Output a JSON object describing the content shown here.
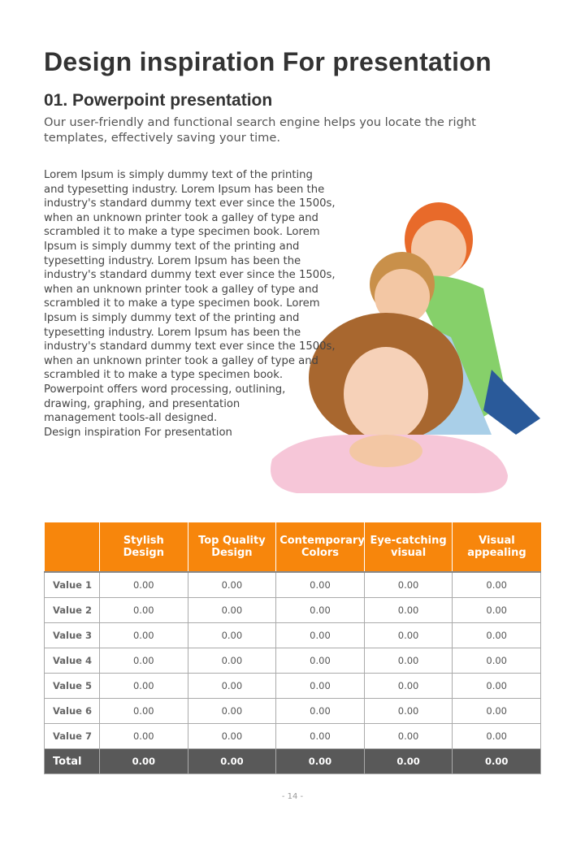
{
  "header": {
    "title": "Design inspiration For presentation",
    "subtitle": "01. Powerpoint presentation",
    "lead": [
      "Our user-friendly and functional search engine helps you locate the right",
      "templates, effectively saving your time."
    ]
  },
  "body": {
    "lines": [
      "Lorem Ipsum is simply dummy text of the printing",
      "and typesetting industry. Lorem Ipsum has been the",
      "industry's standard dummy text ever since the 1500s,",
      "when an unknown printer took a galley of type and",
      "scrambled it to make a type specimen book. Lorem",
      "Ipsum is simply dummy text of the printing and",
      "typesetting industry.  Lorem Ipsum has been the",
      "industry's standard dummy text ever since the 1500s,",
      "when an unknown printer took a galley of type and",
      "scrambled it to make a type specimen book. Lorem",
      "Ipsum is simply dummy text of the printing and",
      "typesetting industry. Lorem Ipsum has been the",
      "industry's standard dummy text ever since the 1500s,",
      "when an unknown printer took a galley of type and",
      "scrambled it to make a type specimen book.",
      "Powerpoint offers word processing, outlining,",
      "drawing, graphing, and presentation",
      "management tools-all designed.",
      "Design inspiration For presentation"
    ]
  },
  "table": {
    "columns": [
      "Stylish Design",
      "Top Quality Design",
      "Contemporary Colors",
      "Eye-catching visual",
      "Visual appealing"
    ],
    "rows": [
      [
        "Value 1",
        "0.00",
        "0.00",
        "0.00",
        "0.00",
        "0.00"
      ],
      [
        "Value 2",
        "0.00",
        "0.00",
        "0.00",
        "0.00",
        "0.00"
      ],
      [
        "Value 3",
        "0.00",
        "0.00",
        "0.00",
        "0.00",
        "0.00"
      ],
      [
        "Value 4",
        "0.00",
        "0.00",
        "0.00",
        "0.00",
        "0.00"
      ],
      [
        "Value 5",
        "0.00",
        "0.00",
        "0.00",
        "0.00",
        "0.00"
      ],
      [
        "Value 6",
        "0.00",
        "0.00",
        "0.00",
        "0.00",
        "0.00"
      ],
      [
        "Value 7",
        "0.00",
        "0.00",
        "0.00",
        "0.00",
        "0.00"
      ]
    ],
    "total": [
      "Total",
      "0.00",
      "0.00",
      "0.00",
      "0.00",
      "0.00"
    ]
  },
  "footer": {
    "page": "- 14 -"
  }
}
